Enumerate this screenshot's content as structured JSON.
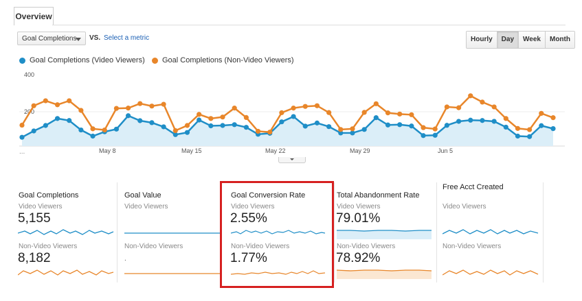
{
  "tabs": {
    "overview": "Overview"
  },
  "controls": {
    "metric": "Goal Completions",
    "vs": "VS.",
    "select_metric": "Select a metric",
    "granularity": [
      "Hourly",
      "Day",
      "Week",
      "Month"
    ],
    "active_granularity": "Day"
  },
  "colors": {
    "video": "#1f8ec7",
    "nonvideo": "#e8862a",
    "highlight": "#d62020"
  },
  "chart_data": {
    "type": "line",
    "x_tick_labels": [
      "May 8",
      "May 15",
      "May 22",
      "May 29",
      "Jun 5"
    ],
    "y_tick_labels": [
      "400",
      "200"
    ],
    "ylim": [
      0,
      430
    ],
    "ellipsis": "...",
    "series": [
      {
        "name": "Goal Completions (Video Viewers)",
        "values": [
          53,
          91,
          124,
          166,
          154,
          97,
          60,
          86,
          102,
          183,
          153,
          141,
          116,
          69,
          82,
          157,
          122,
          124,
          129,
          113,
          71,
          77,
          146,
          178,
          120,
          139,
          117,
          79,
          79,
          100,
          171,
          127,
          129,
          121,
          63,
          65,
          125,
          149,
          156,
          154,
          149,
          114,
          60,
          57,
          123,
          105
        ]
      },
      {
        "name": "Goal Completions (Non-Video Viewers)",
        "values": [
          126,
          243,
          273,
          249,
          273,
          215,
          104,
          97,
          227,
          229,
          256,
          241,
          252,
          93,
          124,
          191,
          166,
          175,
          229,
          172,
          89,
          84,
          201,
          229,
          239,
          243,
          202,
          100,
          104,
          203,
          255,
          200,
          193,
          189,
          111,
          103,
          236,
          231,
          303,
          265,
          236,
          166,
          106,
          99,
          197,
          171
        ]
      }
    ]
  },
  "scorecards": [
    {
      "title": "Goal Completions",
      "video_label": "Video Viewers",
      "video_value": "5,155",
      "nonvideo_label": "Non-Video Viewers",
      "nonvideo_value": "8,182"
    },
    {
      "title": "Goal Value",
      "video_label": "Video Viewers",
      "video_value": "",
      "nonvideo_label": "Non-Video Viewers",
      "nonvideo_value": "."
    },
    {
      "title": "Goal Conversion Rate",
      "video_label": "Video Viewers",
      "video_value": "2.55%",
      "nonvideo_label": "Non-Video Viewers",
      "nonvideo_value": "1.77%"
    },
    {
      "title": "Total Abandonment Rate",
      "video_label": "Video Viewers",
      "video_value": "79.01%",
      "nonvideo_label": "Non-Video Viewers",
      "nonvideo_value": "78.92%"
    },
    {
      "title": "Free Acct Created",
      "video_label": "Video Viewers",
      "video_value": "",
      "nonvideo_label": "Non-Video Viewers",
      "nonvideo_value": ""
    }
  ]
}
